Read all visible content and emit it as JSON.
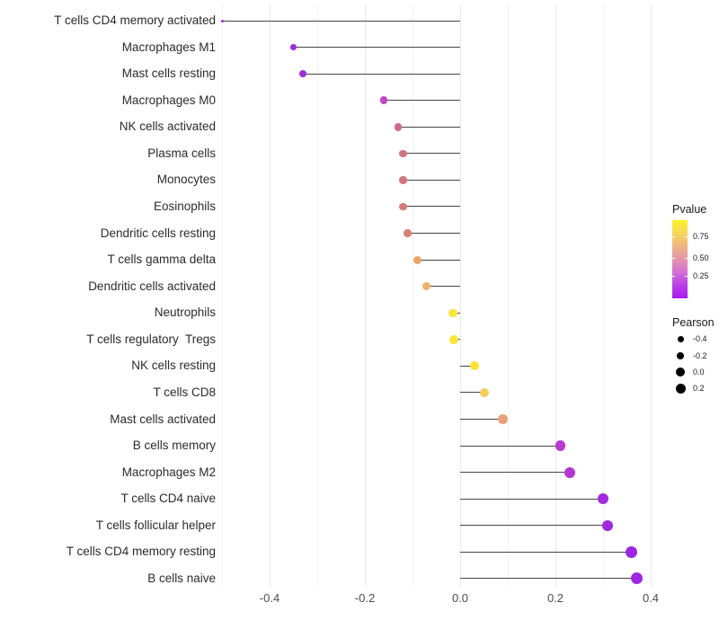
{
  "figure": {
    "background": "#ffffff",
    "segment_color": "#454545",
    "grid_major_color": "#e9e9e9",
    "grid_minor_color": "#f3f3f3",
    "axis_text_color": "#4d4d4d"
  },
  "chart_data": {
    "type": "scatter",
    "subtype": "horizontal-lollipop",
    "title": "",
    "xlabel": "",
    "ylabel": "",
    "xlim": [
      -0.55,
      0.43
    ],
    "x_ticks": [
      "-0.4",
      "-0.2",
      "0.0",
      "0.2",
      "0.4"
    ],
    "x_tick_values": [
      -0.4,
      -0.2,
      0.0,
      0.2,
      0.4
    ],
    "gridline_values": [
      -0.5,
      -0.4,
      -0.3,
      -0.2,
      -0.1,
      0.0,
      0.1,
      0.2,
      0.3,
      0.4
    ],
    "grid": "vertical-only",
    "baseline": 0,
    "points": [
      {
        "label": "T cells CD4 memory activated",
        "pearson": -0.5,
        "color": "#A228E8",
        "size": 3
      },
      {
        "label": "Macrophages M1",
        "pearson": -0.35,
        "color": "#9D2BDC",
        "size": 7.5
      },
      {
        "label": "Mast cells resting",
        "pearson": -0.33,
        "color": "#A02CD9",
        "size": 8
      },
      {
        "label": "Macrophages M0",
        "pearson": -0.16,
        "color": "#C247C0",
        "size": 8.5
      },
      {
        "label": "NK cells activated",
        "pearson": -0.13,
        "color": "#CB6A91",
        "size": 8.5
      },
      {
        "label": "Plasma cells",
        "pearson": -0.12,
        "color": "#D37483",
        "size": 8.5
      },
      {
        "label": "Monocytes",
        "pearson": -0.12,
        "color": "#D37580",
        "size": 8.5
      },
      {
        "label": "Eosinophils",
        "pearson": -0.12,
        "color": "#D67A7C",
        "size": 8.5
      },
      {
        "label": "Dendritic cells resting",
        "pearson": -0.11,
        "color": "#D98076",
        "size": 8.5
      },
      {
        "label": "T cells gamma delta",
        "pearson": -0.09,
        "color": "#EDA46B",
        "size": 9
      },
      {
        "label": "Dendritic cells activated",
        "pearson": -0.07,
        "color": "#F0B167",
        "size": 9
      },
      {
        "label": "Neutrophils",
        "pearson": -0.015,
        "color": "#FAE63B",
        "size": 9.5
      },
      {
        "label": "T cells regulatory  Tregs",
        "pearson": -0.013,
        "color": "#FAE63B",
        "size": 9.5
      },
      {
        "label": "NK cells resting",
        "pearson": 0.03,
        "color": "#F9E236",
        "size": 10
      },
      {
        "label": "T cells CD8",
        "pearson": 0.05,
        "color": "#F3CE59",
        "size": 10
      },
      {
        "label": "Mast cells activated",
        "pearson": 0.09,
        "color": "#E9A17B",
        "size": 10.5
      },
      {
        "label": "B cells memory",
        "pearson": 0.21,
        "color": "#B83CD0",
        "size": 11.5
      },
      {
        "label": "Macrophages M2",
        "pearson": 0.23,
        "color": "#B238D3",
        "size": 12
      },
      {
        "label": "T cells CD4 naive",
        "pearson": 0.3,
        "color": "#A02BDB",
        "size": 12
      },
      {
        "label": "T cells follicular helper",
        "pearson": 0.31,
        "color": "#9E29DD",
        "size": 12
      },
      {
        "label": "T cells CD4 memory resting",
        "pearson": 0.36,
        "color": "#9C26E0",
        "size": 13
      },
      {
        "label": "B cells naive",
        "pearson": 0.37,
        "color": "#9D27E2",
        "size": 13
      }
    ],
    "legend": {
      "position": "right",
      "pvalue": {
        "title": "Pvalue",
        "tick_labels": [
          "0.75",
          "0.50",
          "0.25"
        ],
        "gradient_stops": [
          "#FBF226",
          "#F6D65B",
          "#EFB583",
          "#E495AC",
          "#D270D3",
          "#BA3FE6",
          "#A818F0"
        ]
      },
      "pearson": {
        "title": "Pearson",
        "dot_color": "#000000",
        "items": [
          {
            "label": "-0.4",
            "size": 7
          },
          {
            "label": "-0.2",
            "size": 8.5
          },
          {
            "label": "0.0",
            "size": 10
          },
          {
            "label": "0.2",
            "size": 11
          }
        ]
      }
    }
  }
}
